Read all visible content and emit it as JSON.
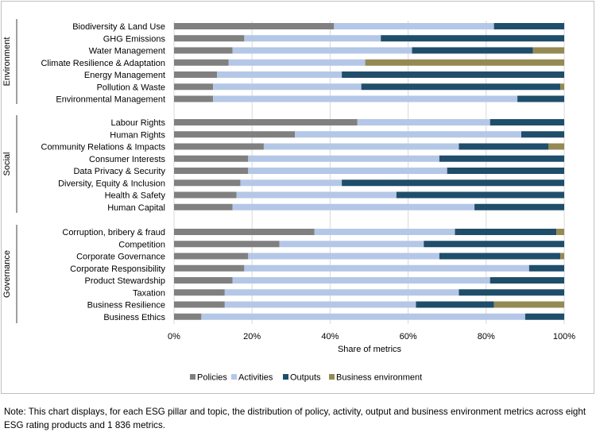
{
  "chart_data": {
    "type": "bar",
    "orientation": "horizontal",
    "stacked": true,
    "title": "",
    "xlabel": "Share of metrics",
    "ylabel": "",
    "xlim": [
      0,
      100
    ],
    "x_tick_labels": [
      "0%",
      "20%",
      "40%",
      "60%",
      "80%",
      "100%"
    ],
    "grid": true,
    "legend_position": "bottom",
    "colors": {
      "Policies": "#808080",
      "Activities": "#b4c7e7",
      "Outputs": "#1f4e6b",
      "Business environment": "#948a54"
    },
    "series_names": [
      "Policies",
      "Activities",
      "Outputs",
      "Business environment"
    ],
    "groups": [
      {
        "name": "Environment",
        "categories": [
          {
            "label": "Biodiversity & Land Use",
            "values": [
              41,
              41,
              18,
              0
            ]
          },
          {
            "label": "GHG Emissions",
            "values": [
              18,
              35,
              47,
              0
            ]
          },
          {
            "label": "Water Management",
            "values": [
              15,
              46,
              31,
              8
            ]
          },
          {
            "label": "Climate Resilience & Adaptation",
            "values": [
              14,
              35,
              0,
              51
            ]
          },
          {
            "label": "Energy Management",
            "values": [
              11,
              32,
              57,
              0
            ]
          },
          {
            "label": "Pollution & Waste",
            "values": [
              10,
              38,
              51,
              1
            ]
          },
          {
            "label": "Environmental Management",
            "values": [
              10,
              78,
              12,
              0
            ]
          }
        ]
      },
      {
        "name": "Social",
        "categories": [
          {
            "label": "Labour Rights",
            "values": [
              47,
              34,
              19,
              0
            ]
          },
          {
            "label": "Human Rights",
            "values": [
              31,
              58,
              11,
              0
            ]
          },
          {
            "label": "Community Relations & Impacts",
            "values": [
              23,
              50,
              23,
              4
            ]
          },
          {
            "label": "Consumer Interests",
            "values": [
              19,
              49,
              32,
              0
            ]
          },
          {
            "label": "Data Privacy & Security",
            "values": [
              19,
              51,
              30,
              0
            ]
          },
          {
            "label": "Diversity, Equity & Inclusion",
            "values": [
              17,
              26,
              57,
              0
            ]
          },
          {
            "label": "Health & Safety",
            "values": [
              16,
              41,
              43,
              0
            ]
          },
          {
            "label": "Human Capital",
            "values": [
              15,
              62,
              23,
              0
            ]
          }
        ]
      },
      {
        "name": "Governance",
        "categories": [
          {
            "label": "Corruption, bribery & fraud",
            "values": [
              36,
              36,
              26,
              2
            ]
          },
          {
            "label": "Competition",
            "values": [
              27,
              37,
              36,
              0
            ]
          },
          {
            "label": "Corporate Governance",
            "values": [
              19,
              49,
              31,
              1
            ]
          },
          {
            "label": "Corporate Responsibility",
            "values": [
              18,
              73,
              9,
              0
            ]
          },
          {
            "label": "Product Stewardship",
            "values": [
              15,
              66,
              19,
              0
            ]
          },
          {
            "label": "Taxation",
            "values": [
              13,
              60,
              27,
              0
            ]
          },
          {
            "label": "Business Resilience",
            "values": [
              13,
              49,
              20,
              18
            ]
          },
          {
            "label": "Business Ethics",
            "values": [
              7,
              83,
              10,
              0
            ]
          }
        ]
      }
    ]
  },
  "note": "Note: This chart displays, for each ESG pillar and topic, the distribution of policy, activity, output and business environment metrics across eight ESG rating products and 1 836 metrics."
}
